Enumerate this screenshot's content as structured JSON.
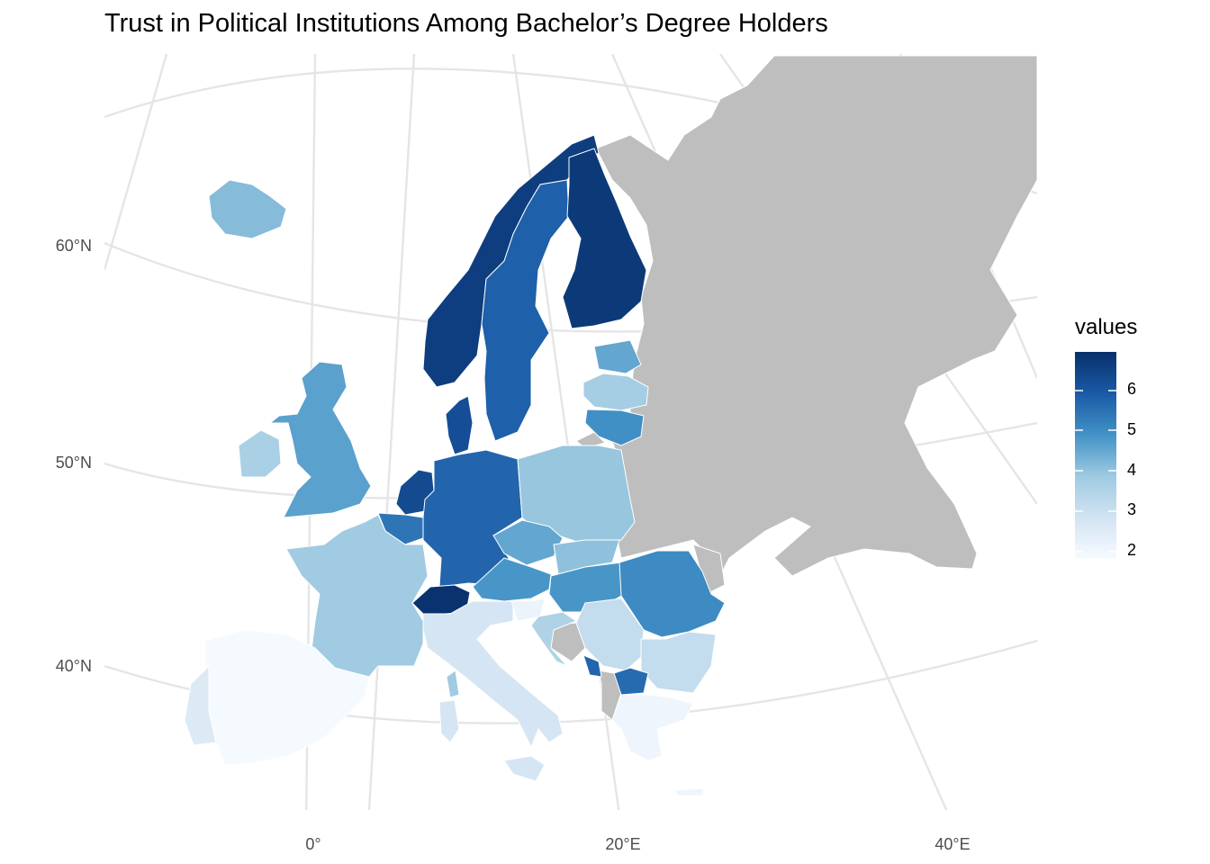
{
  "title": "Trust in Political Institutions Among Bachelor’s Degree Holders",
  "axes": {
    "lat_labels": [
      "60°N",
      "50°N",
      "40°N"
    ],
    "lon_labels": [
      "0°",
      "20°E",
      "40°E"
    ]
  },
  "legend": {
    "title": "values",
    "ticks": [
      "6",
      "5",
      "4",
      "3",
      "2"
    ],
    "color_low": "#f7fbff",
    "color_high": "#08306b",
    "value_min": 1.75,
    "value_max": 6.95
  },
  "colors": {
    "no_data": "#bebebe",
    "graticule": "#e5e5e5",
    "border": "#ffffff"
  },
  "countries": [
    {
      "name": "Iceland",
      "value": 4.1
    },
    {
      "name": "Norway",
      "value": 6.6
    },
    {
      "name": "Sweden",
      "value": 5.8
    },
    {
      "name": "Finland",
      "value": 6.7
    },
    {
      "name": "Estonia",
      "value": 4.5
    },
    {
      "name": "Latvia",
      "value": 3.7
    },
    {
      "name": "Lithuania",
      "value": 4.9
    },
    {
      "name": "Denmark",
      "value": 6.2
    },
    {
      "name": "Ireland",
      "value": 3.6
    },
    {
      "name": "United Kingdom",
      "value": 4.6
    },
    {
      "name": "Netherlands",
      "value": 6.3
    },
    {
      "name": "Belgium",
      "value": 5.4
    },
    {
      "name": "Germany",
      "value": 5.7
    },
    {
      "name": "Poland",
      "value": 3.9
    },
    {
      "name": "Czechia",
      "value": 4.5
    },
    {
      "name": "Slovakia",
      "value": 4.0
    },
    {
      "name": "Austria",
      "value": 4.8
    },
    {
      "name": "Hungary",
      "value": 4.8
    },
    {
      "name": "Romania",
      "value": 5.0
    },
    {
      "name": "Switzerland",
      "value": 6.9
    },
    {
      "name": "France",
      "value": 3.8
    },
    {
      "name": "Italy",
      "value": 2.7
    },
    {
      "name": "Slovenia",
      "value": 2.1
    },
    {
      "name": "Croatia",
      "value": 3.5
    },
    {
      "name": "Serbia",
      "value": 3.1
    },
    {
      "name": "Bulgaria",
      "value": 3.1
    },
    {
      "name": "Montenegro",
      "value": 5.7
    },
    {
      "name": "North Macedonia",
      "value": 5.6
    },
    {
      "name": "Greece",
      "value": 2.0
    },
    {
      "name": "Spain",
      "value": 1.8
    },
    {
      "name": "Portugal",
      "value": 2.5
    }
  ]
}
